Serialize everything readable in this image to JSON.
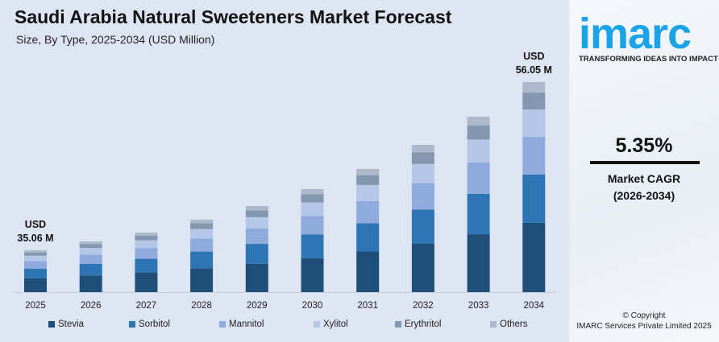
{
  "chart_data": {
    "type": "bar",
    "stacked": true,
    "title": "Saudi Arabia Natural Sweeteners Market Forecast",
    "subtitle": "Size, By Type, 2025-2034 (USD Million)",
    "categories": [
      "2025",
      "2026",
      "2027",
      "2028",
      "2029",
      "2030",
      "2031",
      "2032",
      "2033",
      "2034"
    ],
    "totals": [
      35.06,
      36.17,
      37.27,
      38.88,
      40.59,
      42.7,
      45.21,
      48.22,
      51.73,
      56.05
    ],
    "series": [
      {
        "name": "Stevia",
        "share": 0.33,
        "color": "#1f4e79"
      },
      {
        "name": "Sorbitol",
        "share": 0.23,
        "color": "#2e75b6"
      },
      {
        "name": "Mannitol",
        "share": 0.18,
        "color": "#8faadc"
      },
      {
        "name": "Xylitol",
        "share": 0.13,
        "color": "#b4c7e7"
      },
      {
        "name": "Erythritol",
        "share": 0.08,
        "color": "#8497b0"
      },
      {
        "name": "Others",
        "share": 0.05,
        "color": "#adb9ca"
      }
    ],
    "annotations": [
      {
        "category": "2025",
        "line1": "USD",
        "line2": "35.06 M"
      },
      {
        "category": "2034",
        "line1": "USD",
        "line2": "56.05 M"
      }
    ],
    "grid": false,
    "legend": "bottom"
  },
  "side": {
    "logo": "imarc",
    "tagline": "TRANSFORMING IDEAS INTO IMPACT",
    "cagr": "5.35%",
    "cagr_label": "Market CAGR",
    "cagr_period": "(2026-2034)",
    "copyright": "© Copyright",
    "company": "IMARC Services Private Limited 2025"
  }
}
